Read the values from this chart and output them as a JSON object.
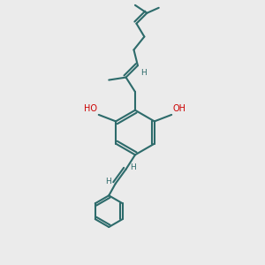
{
  "bg_color": "#ebebeb",
  "bond_color": "#2d6b6b",
  "oh_color": "#cc0000",
  "line_width": 1.5,
  "figsize": [
    3.0,
    3.0
  ],
  "dpi": 100,
  "xlim": [
    0,
    10
  ],
  "ylim": [
    0,
    10
  ]
}
